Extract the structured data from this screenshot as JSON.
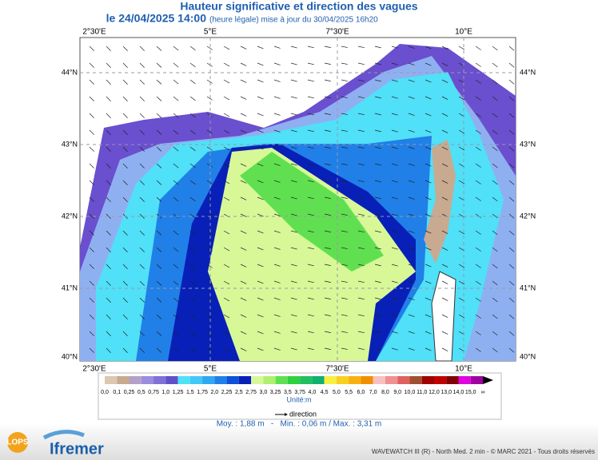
{
  "header": {
    "title": "Hauteur significative et direction des vagues",
    "date": "le 24/04/2025 14:00",
    "note": "(heure légale) mise à jour du 30/04/2025 16h20"
  },
  "map": {
    "lon_labels": [
      "2°30'E",
      "5°E",
      "7°30'E",
      "10°E"
    ],
    "lat_labels": [
      "44°N",
      "43°N",
      "42°N",
      "41°N",
      "40°N"
    ]
  },
  "legend": {
    "levels": [
      "0,0",
      "0,1",
      "0,25",
      "0,5",
      "0,75",
      "1,0",
      "1,25",
      "1,5",
      "1,75",
      "2,0",
      "2,25",
      "2,5",
      "2,75",
      "3,0",
      "3,25",
      "3,5",
      "3,75",
      "4,0",
      "4,5",
      "5,0",
      "5,5",
      "6,0",
      "7,0",
      "8,0",
      "9,0",
      "10,0",
      "11,0",
      "12,0",
      "13,0",
      "14,0",
      "15,0",
      "∞"
    ],
    "colors": [
      "#dcc7b0",
      "#c8aa90",
      "#b4a0c8",
      "#9c8ce0",
      "#8070d8",
      "#6050c8",
      "#50e0f8",
      "#40c8f8",
      "#30a8f0",
      "#2080e8",
      "#1050d8",
      "#0820b8",
      "#d8f898",
      "#b0f070",
      "#60e050",
      "#30d040",
      "#20c060",
      "#10b070",
      "#f8f040",
      "#f8d020",
      "#f8b010",
      "#f09000",
      "#f8c0c0",
      "#f09090",
      "#e06060",
      "#a05030",
      "#a00000",
      "#c00000",
      "#800000",
      "#e000e0",
      "#a000a0"
    ],
    "unit": "Unité:m",
    "arrow_label": "direction"
  },
  "stats": "Moy. : 1,88 m   -   Min. : 0,06 m / Max. : 3,31 m",
  "footer": {
    "lops": "LOPS",
    "brand": "Ifremer",
    "credit": "WAVEWATCH III (R) - North Med. 2 min - © MARC 2021 - Tous droits réservés"
  }
}
